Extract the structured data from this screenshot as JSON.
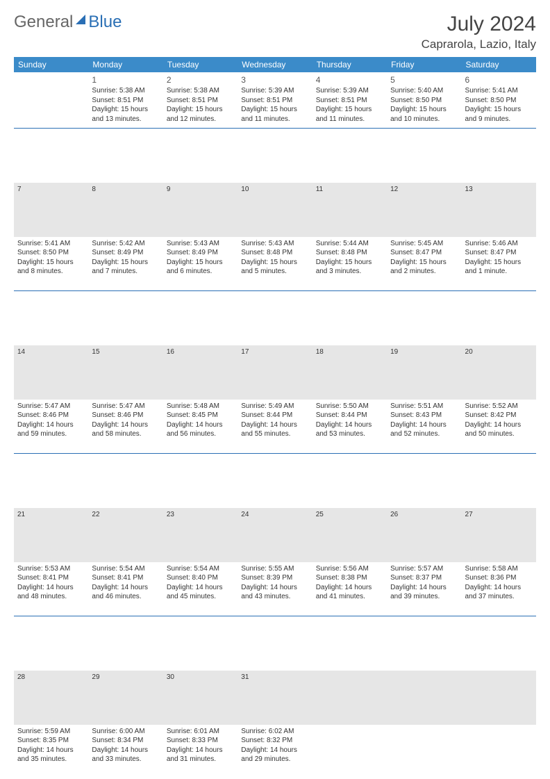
{
  "logo": {
    "word1": "General",
    "word2": "Blue"
  },
  "title": "July 2024",
  "location": "Caprarola, Lazio, Italy",
  "colors": {
    "header_bg": "#3b8bc9",
    "header_fg": "#ffffff",
    "rule": "#2a6fb5",
    "weeknum_bg": "#e6e6e6",
    "text": "#333333"
  },
  "day_headers": [
    "Sunday",
    "Monday",
    "Tuesday",
    "Wednesday",
    "Thursday",
    "Friday",
    "Saturday"
  ],
  "weeks": [
    {
      "days": [
        null,
        {
          "n": "1",
          "sr": "Sunrise: 5:38 AM",
          "ss": "Sunset: 8:51 PM",
          "d1": "Daylight: 15 hours",
          "d2": "and 13 minutes."
        },
        {
          "n": "2",
          "sr": "Sunrise: 5:38 AM",
          "ss": "Sunset: 8:51 PM",
          "d1": "Daylight: 15 hours",
          "d2": "and 12 minutes."
        },
        {
          "n": "3",
          "sr": "Sunrise: 5:39 AM",
          "ss": "Sunset: 8:51 PM",
          "d1": "Daylight: 15 hours",
          "d2": "and 11 minutes."
        },
        {
          "n": "4",
          "sr": "Sunrise: 5:39 AM",
          "ss": "Sunset: 8:51 PM",
          "d1": "Daylight: 15 hours",
          "d2": "and 11 minutes."
        },
        {
          "n": "5",
          "sr": "Sunrise: 5:40 AM",
          "ss": "Sunset: 8:50 PM",
          "d1": "Daylight: 15 hours",
          "d2": "and 10 minutes."
        },
        {
          "n": "6",
          "sr": "Sunrise: 5:41 AM",
          "ss": "Sunset: 8:50 PM",
          "d1": "Daylight: 15 hours",
          "d2": "and 9 minutes."
        }
      ]
    },
    {
      "label_row": [
        "7",
        "8",
        "9",
        "10",
        "11",
        "12",
        "13"
      ],
      "days": [
        {
          "sr": "Sunrise: 5:41 AM",
          "ss": "Sunset: 8:50 PM",
          "d1": "Daylight: 15 hours",
          "d2": "and 8 minutes."
        },
        {
          "sr": "Sunrise: 5:42 AM",
          "ss": "Sunset: 8:49 PM",
          "d1": "Daylight: 15 hours",
          "d2": "and 7 minutes."
        },
        {
          "sr": "Sunrise: 5:43 AM",
          "ss": "Sunset: 8:49 PM",
          "d1": "Daylight: 15 hours",
          "d2": "and 6 minutes."
        },
        {
          "sr": "Sunrise: 5:43 AM",
          "ss": "Sunset: 8:48 PM",
          "d1": "Daylight: 15 hours",
          "d2": "and 5 minutes."
        },
        {
          "sr": "Sunrise: 5:44 AM",
          "ss": "Sunset: 8:48 PM",
          "d1": "Daylight: 15 hours",
          "d2": "and 3 minutes."
        },
        {
          "sr": "Sunrise: 5:45 AM",
          "ss": "Sunset: 8:47 PM",
          "d1": "Daylight: 15 hours",
          "d2": "and 2 minutes."
        },
        {
          "sr": "Sunrise: 5:46 AM",
          "ss": "Sunset: 8:47 PM",
          "d1": "Daylight: 15 hours",
          "d2": "and 1 minute."
        }
      ]
    },
    {
      "label_row": [
        "14",
        "15",
        "16",
        "17",
        "18",
        "19",
        "20"
      ],
      "days": [
        {
          "sr": "Sunrise: 5:47 AM",
          "ss": "Sunset: 8:46 PM",
          "d1": "Daylight: 14 hours",
          "d2": "and 59 minutes."
        },
        {
          "sr": "Sunrise: 5:47 AM",
          "ss": "Sunset: 8:46 PM",
          "d1": "Daylight: 14 hours",
          "d2": "and 58 minutes."
        },
        {
          "sr": "Sunrise: 5:48 AM",
          "ss": "Sunset: 8:45 PM",
          "d1": "Daylight: 14 hours",
          "d2": "and 56 minutes."
        },
        {
          "sr": "Sunrise: 5:49 AM",
          "ss": "Sunset: 8:44 PM",
          "d1": "Daylight: 14 hours",
          "d2": "and 55 minutes."
        },
        {
          "sr": "Sunrise: 5:50 AM",
          "ss": "Sunset: 8:44 PM",
          "d1": "Daylight: 14 hours",
          "d2": "and 53 minutes."
        },
        {
          "sr": "Sunrise: 5:51 AM",
          "ss": "Sunset: 8:43 PM",
          "d1": "Daylight: 14 hours",
          "d2": "and 52 minutes."
        },
        {
          "sr": "Sunrise: 5:52 AM",
          "ss": "Sunset: 8:42 PM",
          "d1": "Daylight: 14 hours",
          "d2": "and 50 minutes."
        }
      ]
    },
    {
      "label_row": [
        "21",
        "22",
        "23",
        "24",
        "25",
        "26",
        "27"
      ],
      "days": [
        {
          "sr": "Sunrise: 5:53 AM",
          "ss": "Sunset: 8:41 PM",
          "d1": "Daylight: 14 hours",
          "d2": "and 48 minutes."
        },
        {
          "sr": "Sunrise: 5:54 AM",
          "ss": "Sunset: 8:41 PM",
          "d1": "Daylight: 14 hours",
          "d2": "and 46 minutes."
        },
        {
          "sr": "Sunrise: 5:54 AM",
          "ss": "Sunset: 8:40 PM",
          "d1": "Daylight: 14 hours",
          "d2": "and 45 minutes."
        },
        {
          "sr": "Sunrise: 5:55 AM",
          "ss": "Sunset: 8:39 PM",
          "d1": "Daylight: 14 hours",
          "d2": "and 43 minutes."
        },
        {
          "sr": "Sunrise: 5:56 AM",
          "ss": "Sunset: 8:38 PM",
          "d1": "Daylight: 14 hours",
          "d2": "and 41 minutes."
        },
        {
          "sr": "Sunrise: 5:57 AM",
          "ss": "Sunset: 8:37 PM",
          "d1": "Daylight: 14 hours",
          "d2": "and 39 minutes."
        },
        {
          "sr": "Sunrise: 5:58 AM",
          "ss": "Sunset: 8:36 PM",
          "d1": "Daylight: 14 hours",
          "d2": "and 37 minutes."
        }
      ]
    },
    {
      "label_row": [
        "28",
        "29",
        "30",
        "31",
        "",
        "",
        ""
      ],
      "days": [
        {
          "sr": "Sunrise: 5:59 AM",
          "ss": "Sunset: 8:35 PM",
          "d1": "Daylight: 14 hours",
          "d2": "and 35 minutes."
        },
        {
          "sr": "Sunrise: 6:00 AM",
          "ss": "Sunset: 8:34 PM",
          "d1": "Daylight: 14 hours",
          "d2": "and 33 minutes."
        },
        {
          "sr": "Sunrise: 6:01 AM",
          "ss": "Sunset: 8:33 PM",
          "d1": "Daylight: 14 hours",
          "d2": "and 31 minutes."
        },
        {
          "sr": "Sunrise: 6:02 AM",
          "ss": "Sunset: 8:32 PM",
          "d1": "Daylight: 14 hours",
          "d2": "and 29 minutes."
        },
        null,
        null,
        null
      ]
    }
  ]
}
